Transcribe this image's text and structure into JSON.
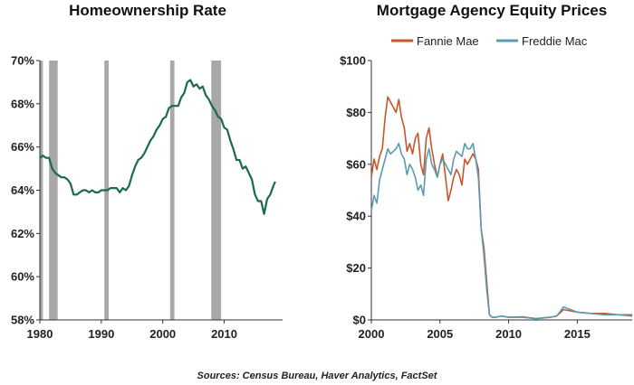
{
  "source_note": "Sources: Census Bureau, Haver Analytics, FactSet",
  "chart_data": [
    {
      "type": "line",
      "title": "Homeownership Rate",
      "xlim": [
        1980,
        2019.5
      ],
      "ylim": [
        58,
        70
      ],
      "x_ticks": [
        1980,
        1990,
        2000,
        2010
      ],
      "y_ticks": [
        {
          "value": 58,
          "label": "58%"
        },
        {
          "value": 60,
          "label": "60%"
        },
        {
          "value": 62,
          "label": "62%"
        },
        {
          "value": 64,
          "label": "64%"
        },
        {
          "value": 66,
          "label": "66%"
        },
        {
          "value": 68,
          "label": "68%"
        },
        {
          "value": 70,
          "label": "70%"
        }
      ],
      "recessions": [
        [
          1980.0,
          1980.5
        ],
        [
          1981.5,
          1982.9
        ],
        [
          1990.5,
          1991.2
        ],
        [
          2001.2,
          2001.9
        ],
        [
          2007.9,
          2009.5
        ]
      ],
      "line_color": "#1a6b4a",
      "recession_color": "#a8a8a8",
      "series": [
        {
          "x": [
            1980.0,
            1980.5,
            1981.0,
            1981.5,
            1982.0,
            1982.5,
            1983.0,
            1983.5,
            1984.0,
            1984.5,
            1985.0,
            1985.5,
            1986.0,
            1986.5,
            1987.0,
            1987.5,
            1988.0,
            1988.5,
            1989.0,
            1989.5,
            1990.0,
            1990.5,
            1991.0,
            1991.5,
            1992.0,
            1992.5,
            1993.0,
            1993.5,
            1994.0,
            1994.5,
            1995.0,
            1995.5,
            1996.0,
            1996.5,
            1997.0,
            1997.5,
            1998.0,
            1998.5,
            1999.0,
            1999.5,
            2000.0,
            2000.5,
            2001.0,
            2001.5,
            2002.0,
            2002.5,
            2003.0,
            2003.5,
            2004.0,
            2004.5,
            2005.0,
            2005.5,
            2006.0,
            2006.5,
            2007.0,
            2007.5,
            2008.0,
            2008.5,
            2009.0,
            2009.5,
            2010.0,
            2010.5,
            2011.0,
            2011.5,
            2012.0,
            2012.5,
            2013.0,
            2013.5,
            2014.0,
            2014.5,
            2015.0,
            2015.5,
            2016.0,
            2016.5,
            2017.0,
            2017.5,
            2018.0,
            2018.3
          ],
          "y": [
            65.5,
            65.6,
            65.5,
            65.5,
            65.0,
            64.8,
            64.7,
            64.6,
            64.6,
            64.5,
            64.3,
            63.8,
            63.8,
            63.9,
            64.0,
            64.0,
            63.9,
            64.0,
            63.9,
            63.9,
            64.0,
            64.0,
            64.0,
            64.1,
            64.1,
            64.1,
            63.9,
            64.1,
            64.0,
            64.2,
            64.7,
            65.1,
            65.4,
            65.5,
            65.7,
            66.0,
            66.3,
            66.5,
            66.8,
            67.0,
            67.3,
            67.4,
            67.8,
            67.9,
            67.9,
            67.9,
            68.3,
            68.5,
            69.0,
            69.1,
            68.8,
            68.9,
            68.7,
            68.8,
            68.4,
            68.2,
            67.9,
            67.7,
            67.4,
            67.3,
            66.9,
            66.8,
            66.3,
            65.9,
            65.4,
            65.4,
            65.0,
            65.1,
            64.8,
            64.5,
            63.8,
            63.5,
            63.5,
            62.9,
            63.6,
            63.8,
            64.2,
            64.4
          ]
        }
      ]
    },
    {
      "type": "line",
      "title": "Mortgage Agency Equity Prices",
      "xlim": [
        2000,
        2019
      ],
      "ylim": [
        0,
        100
      ],
      "x_ticks": [
        2000,
        2005,
        2010,
        2015
      ],
      "y_ticks": [
        {
          "value": 0,
          "label": "$0"
        },
        {
          "value": 20,
          "label": "$20"
        },
        {
          "value": 40,
          "label": "$40"
        },
        {
          "value": 60,
          "label": "$60"
        },
        {
          "value": 80,
          "label": "$80"
        },
        {
          "value": 100,
          "label": "$100"
        }
      ],
      "legend_position": "top",
      "series": [
        {
          "name": "Fannie Mae",
          "color": "#c8562a",
          "x": [
            2000.0,
            2000.2,
            2000.4,
            2000.6,
            2000.8,
            2001.0,
            2001.2,
            2001.4,
            2001.6,
            2001.8,
            2002.0,
            2002.2,
            2002.4,
            2002.6,
            2002.8,
            2003.0,
            2003.2,
            2003.4,
            2003.6,
            2003.8,
            2004.0,
            2004.2,
            2004.4,
            2004.6,
            2004.8,
            2005.0,
            2005.2,
            2005.4,
            2005.6,
            2005.8,
            2006.0,
            2006.2,
            2006.4,
            2006.6,
            2006.8,
            2007.0,
            2007.2,
            2007.4,
            2007.6,
            2007.8,
            2008.0,
            2008.2,
            2008.4,
            2008.6,
            2008.8,
            2009.0,
            2009.5,
            2010.0,
            2011.0,
            2012.0,
            2013.0,
            2013.5,
            2014.0,
            2014.5,
            2015.0,
            2016.0,
            2017.0,
            2018.0,
            2019.0
          ],
          "y": [
            55,
            62,
            58,
            63,
            66,
            78,
            86,
            84,
            82,
            80,
            85,
            78,
            74,
            65,
            68,
            64,
            70,
            72,
            60,
            56,
            70,
            74,
            66,
            60,
            55,
            60,
            64,
            55,
            46,
            50,
            55,
            58,
            56,
            52,
            62,
            60,
            62,
            64,
            62,
            58,
            35,
            28,
            15,
            2,
            1,
            1,
            1.5,
            1,
            1.2,
            0.5,
            1,
            1.5,
            4,
            3.5,
            3,
            2.5,
            2.5,
            2,
            2
          ]
        },
        {
          "name": "Freddie Mac",
          "color": "#5a9bb0",
          "x": [
            2000.0,
            2000.2,
            2000.4,
            2000.6,
            2000.8,
            2001.0,
            2001.2,
            2001.4,
            2001.6,
            2001.8,
            2002.0,
            2002.2,
            2002.4,
            2002.6,
            2002.8,
            2003.0,
            2003.2,
            2003.4,
            2003.6,
            2003.8,
            2004.0,
            2004.2,
            2004.4,
            2004.6,
            2004.8,
            2005.0,
            2005.2,
            2005.4,
            2005.6,
            2005.8,
            2006.0,
            2006.2,
            2006.4,
            2006.6,
            2006.8,
            2007.0,
            2007.2,
            2007.4,
            2007.6,
            2007.8,
            2008.0,
            2008.2,
            2008.4,
            2008.6,
            2008.8,
            2009.0,
            2009.5,
            2010.0,
            2011.0,
            2012.0,
            2013.0,
            2013.5,
            2014.0,
            2014.5,
            2015.0,
            2016.0,
            2017.0,
            2018.0,
            2019.0
          ],
          "y": [
            42,
            48,
            45,
            54,
            58,
            62,
            66,
            64,
            65,
            66,
            68,
            64,
            62,
            56,
            60,
            58,
            55,
            50,
            52,
            48,
            62,
            66,
            60,
            58,
            55,
            60,
            62,
            60,
            58,
            56,
            62,
            65,
            64,
            63,
            68,
            66,
            66,
            68,
            62,
            55,
            35,
            25,
            12,
            2,
            1,
            1,
            1.5,
            1,
            1,
            0.5,
            1,
            1.5,
            5,
            4,
            3,
            2.5,
            2,
            2,
            1.5
          ]
        }
      ]
    }
  ]
}
